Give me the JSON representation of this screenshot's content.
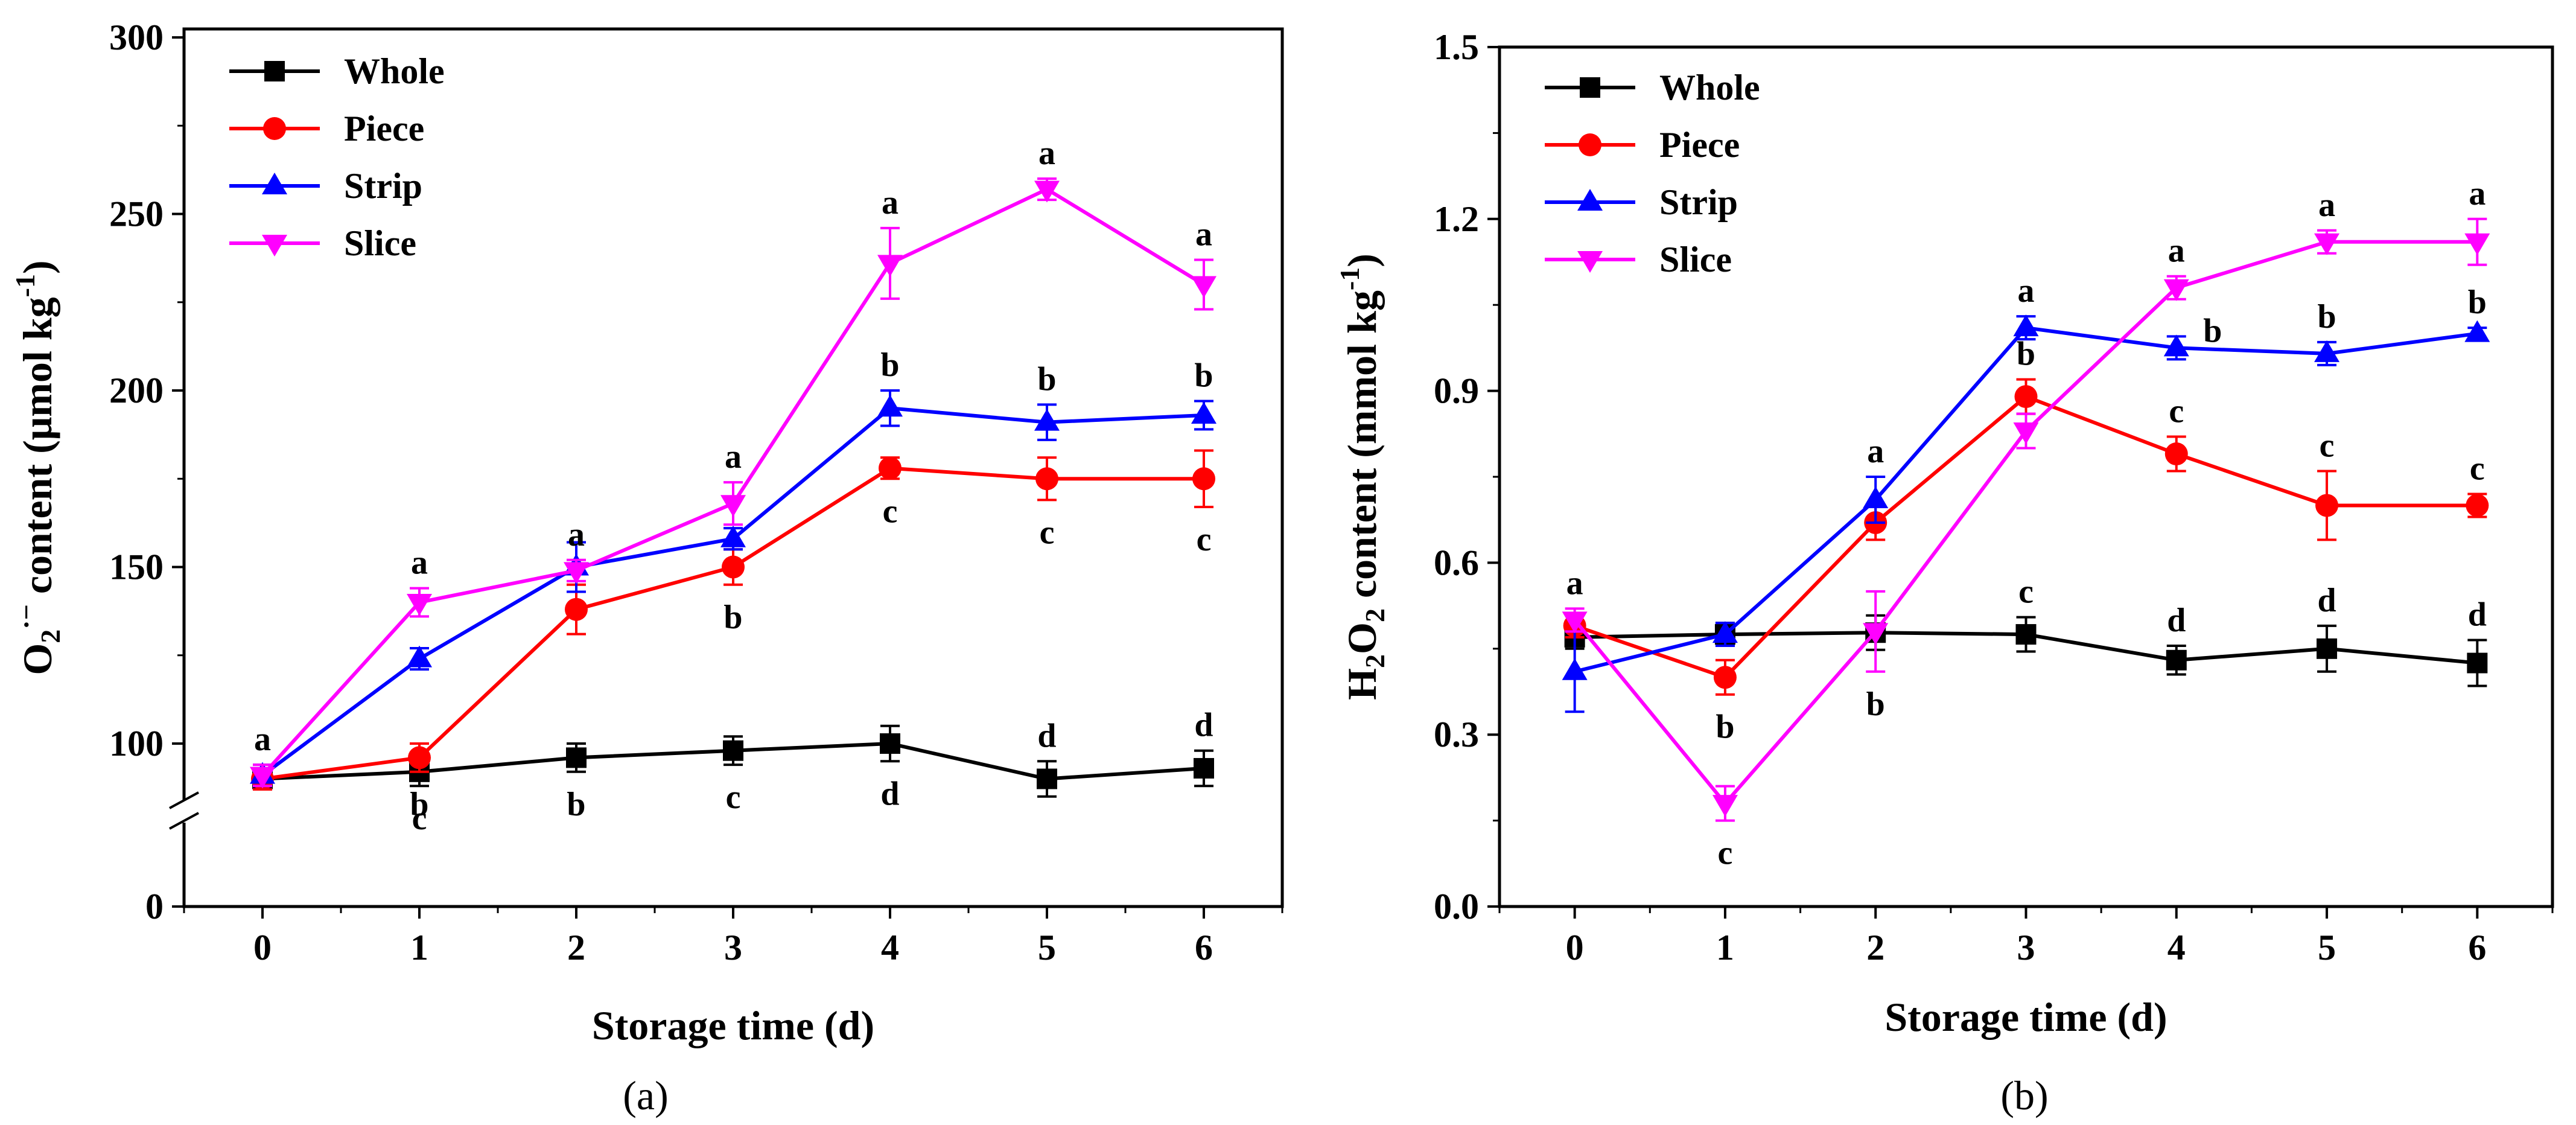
{
  "chart_data": [
    {
      "panel": "a",
      "panel_label": "(a)",
      "type": "line",
      "xlabel": "Storage time (d)",
      "ylabel": {
        "base": "O",
        "sub": "2",
        "sup": "·−",
        "rest": " content (μmol kg",
        "unit_sup": "-1",
        "close": ")"
      },
      "x": [
        0,
        1,
        2,
        3,
        4,
        5,
        6
      ],
      "xlim": [
        -0.5,
        6.5
      ],
      "ylim": [
        85,
        300
      ],
      "axis_break": true,
      "yticks": [
        {
          "value": 0,
          "label": "0"
        },
        {
          "value": 100,
          "label": "100"
        },
        {
          "value": 150,
          "label": "150"
        },
        {
          "value": 200,
          "label": "200"
        },
        {
          "value": 250,
          "label": "250"
        },
        {
          "value": 300,
          "label": "300"
        }
      ],
      "legend_position": "top-left",
      "series": [
        {
          "name": "Whole",
          "color": "#000000",
          "marker": "square",
          "values": [
            90,
            92,
            96,
            98,
            100,
            90,
            93
          ],
          "errors": [
            3,
            4,
            4,
            4,
            5,
            5,
            5
          ],
          "letters": [
            "",
            "c",
            "b",
            "c",
            "d",
            "d",
            "d"
          ],
          "letter_pos": [
            "",
            "below",
            "below",
            "below",
            "below",
            "above",
            "above"
          ]
        },
        {
          "name": "Piece",
          "color": "#ff0000",
          "marker": "circle",
          "values": [
            90,
            96,
            138,
            150,
            178,
            175,
            175
          ],
          "errors": [
            3,
            4,
            7,
            5,
            3,
            6,
            8
          ],
          "letters": [
            "",
            "b",
            "",
            "b",
            "c",
            "c",
            "c"
          ],
          "letter_pos": [
            "",
            "below",
            "",
            "below",
            "below",
            "below",
            "below"
          ]
        },
        {
          "name": "Strip",
          "color": "#0000ff",
          "marker": "triangle-up",
          "values": [
            91,
            124,
            150,
            158,
            195,
            191,
            193
          ],
          "errors": [
            3,
            3,
            7,
            3,
            5,
            5,
            4
          ],
          "letters": [
            "",
            "",
            "",
            "",
            "b",
            "b",
            "b"
          ],
          "letter_pos": [
            "",
            "",
            "",
            "",
            "above",
            "above",
            "above"
          ]
        },
        {
          "name": "Slice",
          "color": "#ff00ff",
          "marker": "triangle-down",
          "values": [
            91,
            140,
            149,
            168,
            236,
            257,
            230
          ],
          "errors": [
            3,
            4,
            3,
            6,
            10,
            3,
            7
          ],
          "letters": [
            "a",
            "a",
            "a",
            "a",
            "a",
            "a",
            "a"
          ],
          "letter_pos": [
            "above",
            "above",
            "above",
            "above",
            "above",
            "above",
            "above"
          ]
        }
      ]
    },
    {
      "panel": "b",
      "panel_label": "(b)",
      "type": "line",
      "xlabel": "Storage time (d)",
      "ylabel": {
        "base": "H",
        "sub": "2",
        "mid": "O",
        "sub2": "2",
        "rest": " content (mmol kg",
        "unit_sup": "-1",
        "close": ")"
      },
      "x": [
        0,
        1,
        2,
        3,
        4,
        5,
        6
      ],
      "xlim": [
        -0.5,
        6.5
      ],
      "ylim": [
        0,
        1.5
      ],
      "yticks": [
        {
          "value": 0,
          "label": "0.0"
        },
        {
          "value": 0.3,
          "label": "0.3"
        },
        {
          "value": 0.6,
          "label": "0.6"
        },
        {
          "value": 0.9,
          "label": "0.9"
        },
        {
          "value": 1.2,
          "label": "1.2"
        },
        {
          "value": 1.5,
          "label": "1.5"
        }
      ],
      "legend_position": "top-left",
      "series": [
        {
          "name": "Whole",
          "color": "#000000",
          "marker": "square",
          "values": [
            0.47,
            0.475,
            0.478,
            0.475,
            0.43,
            0.45,
            0.425
          ],
          "errors": [
            0.02,
            0.02,
            0.03,
            0.03,
            0.025,
            0.04,
            0.04
          ],
          "letters": [
            "",
            "",
            "",
            "c",
            "d",
            "d",
            "d"
          ],
          "letter_pos": [
            "",
            "",
            "",
            "above",
            "above",
            "above",
            "above"
          ]
        },
        {
          "name": "Piece",
          "color": "#ff0000",
          "marker": "circle",
          "values": [
            0.49,
            0.4,
            0.67,
            0.89,
            0.79,
            0.7,
            0.7
          ],
          "errors": [
            0.02,
            0.03,
            0.03,
            0.03,
            0.03,
            0.06,
            0.02
          ],
          "letters": [
            "",
            "b",
            "",
            "b",
            "c",
            "c",
            "c"
          ],
          "letter_pos": [
            "",
            "below",
            "",
            "above",
            "above",
            "above",
            "above"
          ]
        },
        {
          "name": "Strip",
          "color": "#0000ff",
          "marker": "triangle-up",
          "values": [
            0.41,
            0.475,
            0.71,
            1.01,
            0.975,
            0.965,
            1.0
          ],
          "errors": [
            0.07,
            0.02,
            0.04,
            0.02,
            0.02,
            0.02,
            0.01
          ],
          "letters": [
            "",
            "",
            "a",
            "a",
            "b",
            "b",
            "b"
          ],
          "letter_pos": [
            "",
            "",
            "above",
            "above",
            "right",
            "above",
            "above"
          ]
        },
        {
          "name": "Slice",
          "color": "#ff00ff",
          "marker": "triangle-down",
          "values": [
            0.5,
            0.18,
            0.48,
            0.83,
            1.08,
            1.16,
            1.16
          ],
          "errors": [
            0.02,
            0.03,
            0.07,
            0.03,
            0.02,
            0.02,
            0.04
          ],
          "letters": [
            "a",
            "c",
            "b",
            "",
            "a",
            "a",
            "a"
          ],
          "letter_pos": [
            "above",
            "below",
            "below",
            "",
            "above",
            "above",
            "above"
          ]
        }
      ]
    }
  ]
}
